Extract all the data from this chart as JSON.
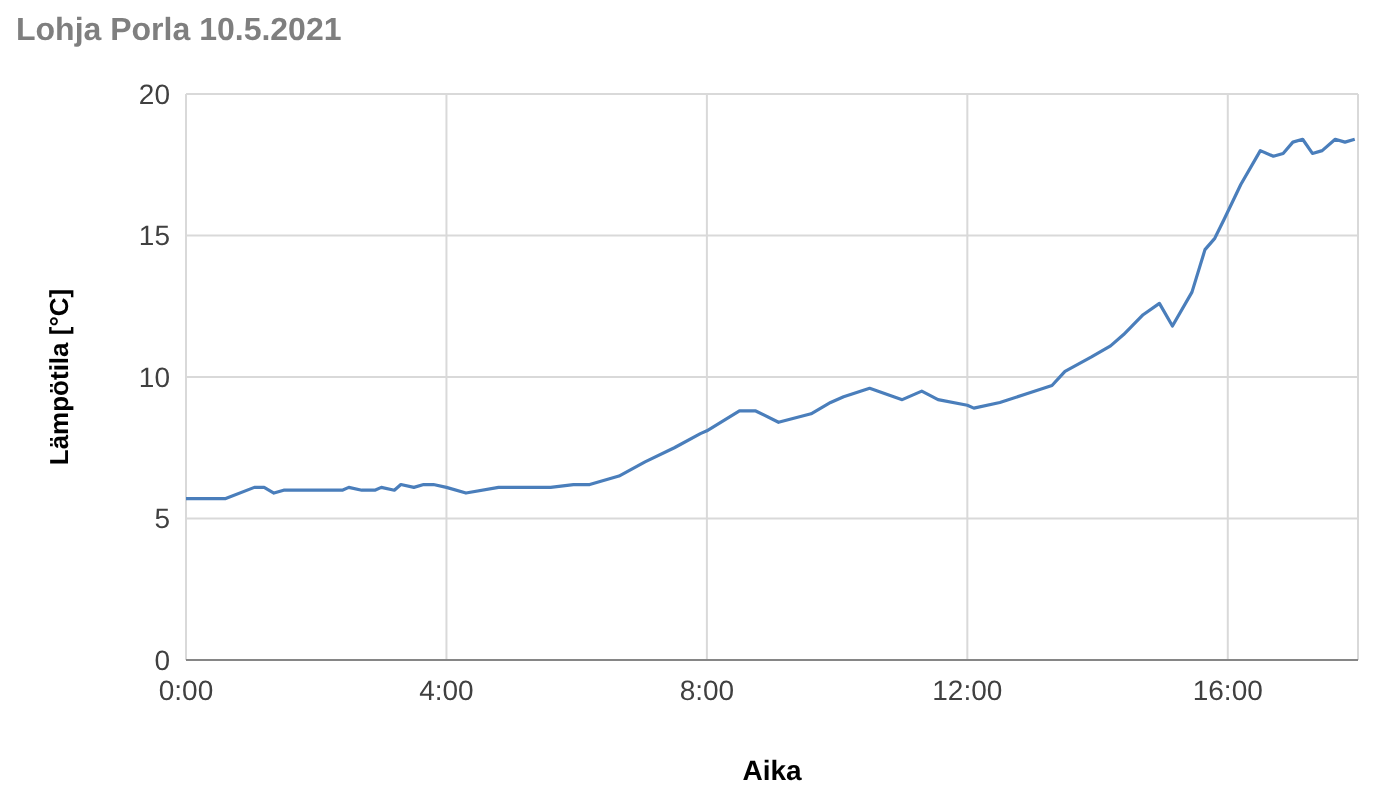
{
  "chart_data": {
    "type": "line",
    "title": "Lohja Porla 10.5.2021",
    "xlabel": "Aika",
    "ylabel": "Lämpötila [°C]",
    "xlim": [
      0,
      18
    ],
    "xticks": [
      {
        "value": 0,
        "label": "0:00"
      },
      {
        "value": 4,
        "label": "4:00"
      },
      {
        "value": 8,
        "label": "8:00"
      },
      {
        "value": 12,
        "label": "12:00"
      },
      {
        "value": 16,
        "label": "16:00"
      }
    ],
    "ylim": [
      0,
      20
    ],
    "yticks": [
      0,
      5,
      10,
      15,
      20
    ],
    "grid": true,
    "marker": "none",
    "line_style": "solid",
    "series": [
      {
        "color": "#4a7ebb",
        "x": [
          0,
          0.6,
          1.05,
          1.2,
          1.35,
          1.5,
          2.4,
          2.5,
          2.7,
          2.9,
          3.0,
          3.2,
          3.3,
          3.5,
          3.65,
          3.8,
          4.0,
          4.3,
          4.8,
          5.6,
          5.95,
          6.2,
          6.65,
          7.05,
          7.5,
          7.9,
          8.0,
          8.5,
          8.75,
          9.1,
          9.6,
          9.9,
          10.1,
          10.5,
          11.0,
          11.3,
          11.55,
          12.0,
          12.1,
          12.5,
          12.9,
          13.3,
          13.5,
          13.9,
          14.2,
          14.4,
          14.7,
          14.95,
          15.15,
          15.45,
          15.65,
          15.8,
          15.95,
          16.2,
          16.5,
          16.7,
          16.85,
          17.0,
          17.15,
          17.3,
          17.45,
          17.65,
          17.8,
          17.95
        ],
        "values": [
          5.7,
          5.7,
          6.1,
          6.1,
          5.9,
          6.0,
          6.0,
          6.1,
          6.0,
          6.0,
          6.1,
          6.0,
          6.2,
          6.1,
          6.2,
          6.2,
          6.1,
          5.9,
          6.1,
          6.1,
          6.2,
          6.2,
          6.5,
          7.0,
          7.5,
          8.0,
          8.1,
          8.8,
          8.8,
          8.4,
          8.7,
          9.1,
          9.3,
          9.6,
          9.2,
          9.5,
          9.2,
          9.0,
          8.9,
          9.1,
          9.4,
          9.7,
          10.2,
          10.7,
          11.1,
          11.5,
          12.2,
          12.6,
          11.8,
          13.0,
          14.5,
          14.9,
          15.6,
          16.8,
          18.0,
          17.8,
          17.9,
          18.3,
          18.4,
          17.9,
          18.0,
          18.4,
          18.3,
          18.4
        ]
      }
    ]
  }
}
